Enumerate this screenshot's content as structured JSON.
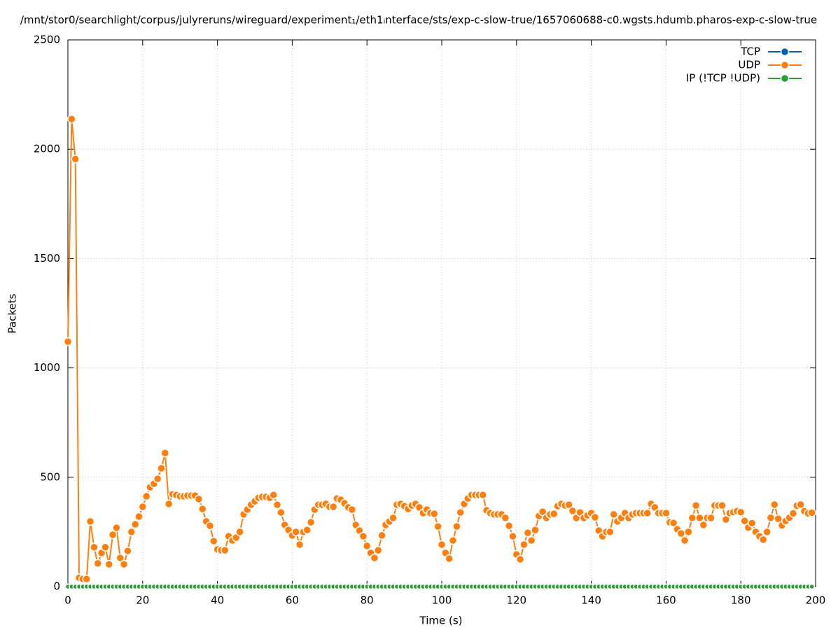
{
  "chart_data": {
    "type": "line",
    "title": "/mnt/stor0/searchlight/corpus/julyreruns/wireguard/experiment₁/eth1ᵢnterface/sts/exp-c-slow-true/1657060688-c0.wgsts.hdumb.pharos-exp-c-slow-true",
    "x_label": "Time (s)",
    "y_label": "Packets",
    "xlim": [
      0,
      200
    ],
    "xticks": [
      0,
      20,
      40,
      60,
      80,
      100,
      120,
      140,
      160,
      180,
      200
    ],
    "ylim": [
      0,
      2500
    ],
    "yticks": [
      0,
      500,
      1000,
      1500,
      2000,
      2500
    ],
    "grid": true,
    "legend": "upper right",
    "x": [
      0,
      1,
      2,
      3,
      4,
      5,
      6,
      7,
      8,
      9,
      10,
      11,
      12,
      13,
      14,
      15,
      16,
      17,
      18,
      19,
      20,
      21,
      22,
      23,
      24,
      25,
      26,
      27,
      28,
      29,
      30,
      31,
      32,
      33,
      34,
      35,
      36,
      37,
      38,
      39,
      40,
      41,
      42,
      43,
      44,
      45,
      46,
      47,
      48,
      49,
      50,
      51,
      52,
      53,
      54,
      55,
      56,
      57,
      58,
      59,
      60,
      61,
      62,
      63,
      64,
      65,
      66,
      67,
      68,
      69,
      70,
      71,
      72,
      73,
      74,
      75,
      76,
      77,
      78,
      79,
      80,
      81,
      82,
      83,
      84,
      85,
      86,
      87,
      88,
      89,
      90,
      91,
      92,
      93,
      94,
      95,
      96,
      97,
      98,
      99,
      100,
      101,
      102,
      103,
      104,
      105,
      106,
      107,
      108,
      109,
      110,
      111,
      112,
      113,
      114,
      115,
      116,
      117,
      118,
      119,
      120,
      121,
      122,
      123,
      124,
      125,
      126,
      127,
      128,
      129,
      130,
      131,
      132,
      133,
      134,
      135,
      136,
      137,
      138,
      139,
      140,
      141,
      142,
      143,
      144,
      145,
      146,
      147,
      148,
      149,
      150,
      151,
      152,
      153,
      154,
      155,
      156,
      157,
      158,
      159,
      160,
      161,
      162,
      163,
      164,
      165,
      166,
      167,
      168,
      169,
      170,
      171,
      172,
      173,
      174,
      175,
      176,
      177,
      178,
      179,
      180,
      181,
      182,
      183,
      184,
      185,
      186,
      187,
      188,
      189,
      190,
      191,
      192,
      193,
      194,
      195,
      196,
      197,
      198,
      199
    ],
    "series": [
      {
        "name": "TCP",
        "color": "#0060ad",
        "values": [
          0,
          0,
          0,
          0,
          0,
          0,
          0,
          0,
          0,
          0,
          0,
          0,
          0,
          0,
          0,
          0,
          0,
          0,
          0,
          0,
          0,
          0,
          0,
          0,
          0,
          0,
          0,
          0,
          0,
          0,
          0,
          0,
          0,
          0,
          0,
          0,
          0,
          0,
          0,
          0,
          0,
          0,
          0,
          0,
          0,
          0,
          0,
          0,
          0,
          0,
          0,
          0,
          0,
          0,
          0,
          0,
          0,
          0,
          0,
          0,
          0,
          0,
          0,
          0,
          0,
          0,
          0,
          0,
          0,
          0,
          0,
          0,
          0,
          0,
          0,
          0,
          0,
          0,
          0,
          0,
          0,
          0,
          0,
          0,
          0,
          0,
          0,
          0,
          0,
          0,
          0,
          0,
          0,
          0,
          0,
          0,
          0,
          0,
          0,
          0,
          0,
          0,
          0,
          0,
          0,
          0,
          0,
          0,
          0,
          0,
          0,
          0,
          0,
          0,
          0,
          0,
          0,
          0,
          0,
          0,
          0,
          0,
          0,
          0,
          0,
          0,
          0,
          0,
          0,
          0,
          0,
          0,
          0,
          0,
          0,
          0,
          0,
          0,
          0,
          0,
          0,
          0,
          0,
          0,
          0,
          0,
          0,
          0,
          0,
          0,
          0,
          0,
          0,
          0,
          0,
          0,
          0,
          0,
          0,
          0,
          0,
          0,
          0,
          0,
          0,
          0,
          0,
          0,
          0,
          0,
          0,
          0,
          0,
          0,
          0,
          0,
          0,
          0,
          0,
          0,
          0,
          0,
          0,
          0,
          0,
          0,
          0,
          0,
          0,
          0,
          0,
          0,
          0,
          0,
          0,
          0,
          0,
          0,
          0,
          0
        ]
      },
      {
        "name": "UDP",
        "color": "#ff7f0e",
        "values": [
          1120,
          2138,
          1955,
          40,
          35,
          35,
          298,
          180,
          106,
          154,
          180,
          102,
          237,
          269,
          131,
          102,
          163,
          250,
          285,
          320,
          365,
          413,
          454,
          470,
          493,
          541,
          611,
          378,
          422,
          419,
          413,
          413,
          416,
          416,
          416,
          400,
          355,
          298,
          278,
          208,
          170,
          166,
          166,
          230,
          211,
          224,
          250,
          330,
          352,
          374,
          390,
          406,
          410,
          410,
          406,
          419,
          374,
          339,
          282,
          259,
          234,
          250,
          192,
          250,
          259,
          294,
          352,
          374,
          374,
          378,
          365,
          365,
          403,
          397,
          381,
          362,
          352,
          282,
          256,
          230,
          186,
          154,
          131,
          166,
          234,
          282,
          298,
          314,
          374,
          378,
          368,
          355,
          371,
          378,
          362,
          336,
          352,
          336,
          333,
          275,
          192,
          154,
          128,
          211,
          275,
          339,
          378,
          403,
          419,
          419,
          419,
          419,
          349,
          336,
          330,
          330,
          330,
          314,
          278,
          230,
          147,
          125,
          192,
          246,
          211,
          259,
          323,
          342,
          314,
          330,
          333,
          368,
          378,
          371,
          374,
          346,
          314,
          339,
          314,
          326,
          336,
          317,
          256,
          230,
          250,
          250,
          330,
          298,
          314,
          336,
          314,
          330,
          336,
          336,
          336,
          336,
          378,
          362,
          336,
          336,
          336,
          294,
          291,
          262,
          243,
          211,
          250,
          314,
          371,
          314,
          282,
          314,
          314,
          371,
          371,
          371,
          307,
          336,
          340,
          345,
          340,
          300,
          270,
          290,
          250,
          230,
          215,
          250,
          315,
          375,
          310,
          280,
          300,
          315,
          335,
          370,
          375,
          345,
          335,
          338
        ]
      },
      {
        "name": "IP (!TCP  !UDP)",
        "color": "#2a9d34",
        "values": [
          0,
          0,
          0,
          0,
          0,
          0,
          0,
          0,
          0,
          0,
          0,
          0,
          0,
          0,
          0,
          0,
          0,
          0,
          0,
          0,
          0,
          0,
          0,
          0,
          0,
          0,
          0,
          0,
          0,
          0,
          0,
          0,
          0,
          0,
          0,
          0,
          0,
          0,
          0,
          0,
          0,
          0,
          0,
          0,
          0,
          0,
          0,
          0,
          0,
          0,
          0,
          0,
          0,
          0,
          0,
          0,
          0,
          0,
          0,
          0,
          0,
          0,
          0,
          0,
          0,
          0,
          0,
          0,
          0,
          0,
          0,
          0,
          0,
          0,
          0,
          0,
          0,
          0,
          0,
          0,
          0,
          0,
          0,
          0,
          0,
          0,
          0,
          0,
          0,
          0,
          0,
          0,
          0,
          0,
          0,
          0,
          0,
          0,
          0,
          0,
          0,
          0,
          0,
          0,
          0,
          0,
          0,
          0,
          0,
          0,
          0,
          0,
          0,
          0,
          0,
          0,
          0,
          0,
          0,
          0,
          0,
          0,
          0,
          0,
          0,
          0,
          0,
          0,
          0,
          0,
          0,
          0,
          0,
          0,
          0,
          0,
          0,
          0,
          0,
          0,
          0,
          0,
          0,
          0,
          0,
          0,
          0,
          0,
          0,
          0,
          0,
          0,
          0,
          0,
          0,
          0,
          0,
          0,
          0,
          0,
          0,
          0,
          0,
          0,
          0,
          0,
          0,
          0,
          0,
          0,
          0,
          0,
          0,
          0,
          0,
          0,
          0,
          0,
          0,
          0,
          0,
          0,
          0,
          0,
          0,
          0,
          0,
          0,
          0,
          0,
          0,
          0,
          0,
          0,
          0,
          0,
          0,
          0,
          0,
          0
        ]
      }
    ]
  }
}
